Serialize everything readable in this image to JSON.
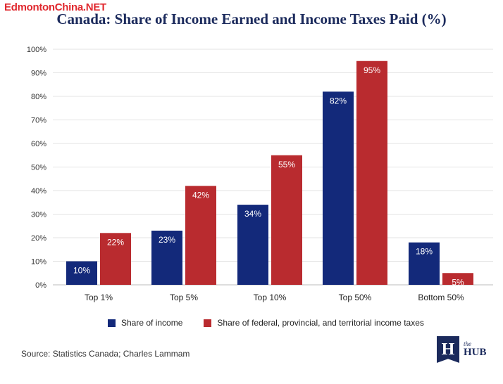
{
  "watermark": "EdmontonChina.NET",
  "source": "Source: Statistics Canada; Charles Lammam",
  "logo": {
    "mark": "H",
    "the": "the",
    "hub": "HUB"
  },
  "colors": {
    "income": "#13297a",
    "taxes": "#b92b2f",
    "title": "#1b2a5c"
  },
  "chart_data": {
    "type": "bar",
    "title": "Canada: Share of Income Earned and Income Taxes Paid (%)",
    "categories": [
      "Top 1%",
      "Top 5%",
      "Top 10%",
      "Top 50%",
      "Bottom 50%"
    ],
    "series": [
      {
        "name": "Share of income",
        "values": [
          10,
          23,
          34,
          82,
          18
        ],
        "labels": [
          "10%",
          "23%",
          "34%",
          "82%",
          "18%"
        ]
      },
      {
        "name": "Share of federal, provincial, and territorial income taxes",
        "values": [
          22,
          42,
          55,
          95,
          5
        ],
        "labels": [
          "22%",
          "42%",
          "55%",
          "95%",
          "5%"
        ]
      }
    ],
    "ylim": [
      0,
      100
    ],
    "yticks": [
      "0%",
      "10%",
      "20%",
      "30%",
      "40%",
      "50%",
      "60%",
      "70%",
      "80%",
      "90%",
      "100%"
    ],
    "grid": true,
    "legend": "bottom"
  }
}
